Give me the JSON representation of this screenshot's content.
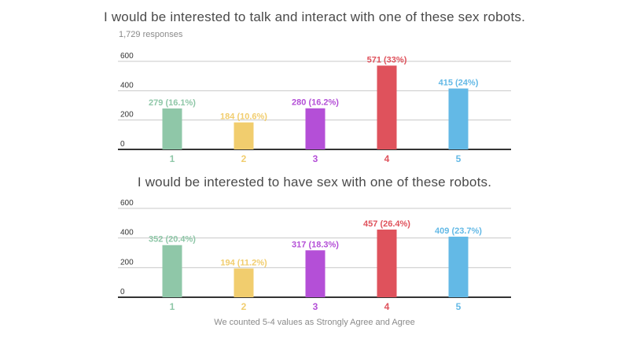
{
  "responses": "1,729 responses",
  "footnote": "We counted 5-4 values as Strongly Agree and Agree",
  "colors": [
    "#8fc7a8",
    "#f1cd6e",
    "#b44fd7",
    "#df525c",
    "#63b9e6"
  ],
  "chart_data": [
    {
      "type": "bar",
      "title": "I would be interested to talk and interact with one of these sex robots.",
      "categories": [
        "1",
        "2",
        "3",
        "4",
        "5"
      ],
      "values": [
        279,
        184,
        280,
        571,
        415
      ],
      "data_labels": [
        "279 (16.1%)",
        "184 (10.6%)",
        "280 (16.2%)",
        "571 (33%)",
        "415 (24%)"
      ],
      "yticks": [
        "0",
        "200",
        "400",
        "600"
      ],
      "ylim": [
        0,
        600
      ],
      "grid": true
    },
    {
      "type": "bar",
      "title": "I would be interested to have sex with one of these robots.",
      "categories": [
        "1",
        "2",
        "3",
        "4",
        "5"
      ],
      "values": [
        352,
        194,
        317,
        457,
        409
      ],
      "data_labels": [
        "352 (20.4%)",
        "194 (11.2%)",
        "317 (18.3%)",
        "457 (26.4%)",
        "409 (23.7%)"
      ],
      "yticks": [
        "0",
        "200",
        "400",
        "600"
      ],
      "ylim": [
        0,
        600
      ],
      "grid": true
    }
  ]
}
